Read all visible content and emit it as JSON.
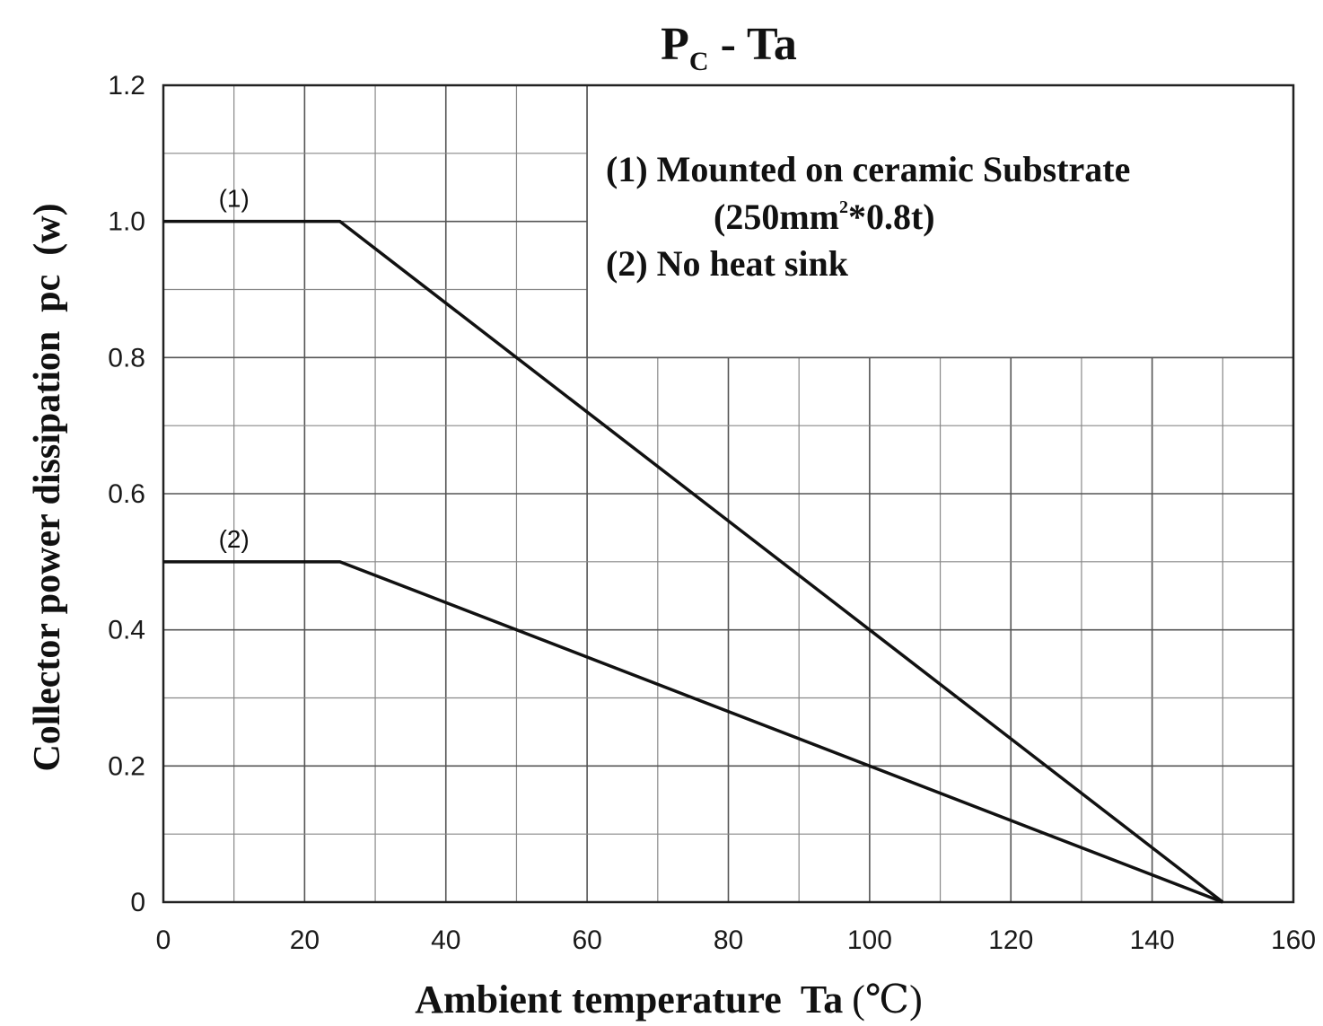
{
  "chart_data": {
    "type": "line",
    "title": {
      "main": "P",
      "sub": "C",
      "rest": " - Ta"
    },
    "xlabel": "Ambient temperature  Ta",
    "xunit": "(℃)",
    "ylabel": "Collector power dissipation  pc  (w)",
    "xlim": [
      0,
      160
    ],
    "ylim": [
      0,
      1.2
    ],
    "xticks": [
      "0",
      "20",
      "40",
      "60",
      "80",
      "100",
      "120",
      "140",
      "160"
    ],
    "yticks": [
      "0",
      "0.2",
      "0.4",
      "0.6",
      "0.8",
      "1.0",
      "1.2"
    ],
    "grid": true,
    "series": [
      {
        "name": "(1)",
        "x": [
          0,
          25,
          150
        ],
        "y": [
          1.0,
          1.0,
          0
        ]
      },
      {
        "name": "(2)",
        "x": [
          0,
          25,
          150
        ],
        "y": [
          0.5,
          0.5,
          0
        ]
      }
    ],
    "legend": {
      "line1": "(1)  Mounted on ceramic Substrate",
      "line2": {
        "pre": "(250mm",
        "sup": "2",
        "post": "*0.8t)"
      },
      "line3": "(2)   No heat sink"
    }
  }
}
